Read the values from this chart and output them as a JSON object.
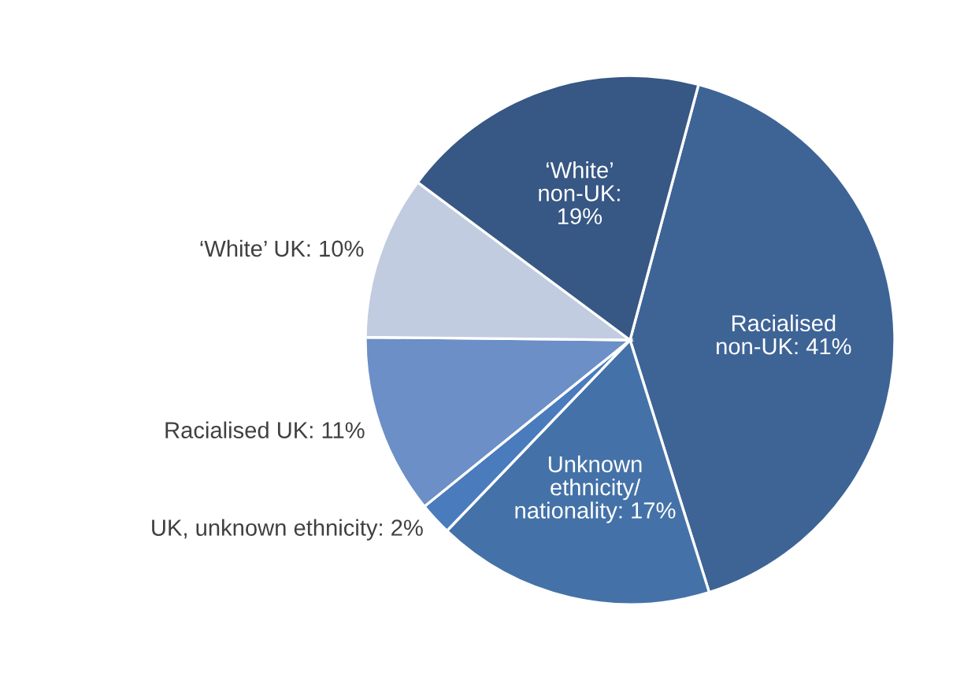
{
  "chart_data": {
    "type": "pie",
    "categories": [
      "Racialised\nnon-UK: 41%",
      "Unknown\nethnicity/\nnationality: 17%",
      "UK, unknown ethnicity: 2%",
      "Racialised UK: 11%",
      "‘White’ UK: 10%",
      "‘White’\nnon-UK:\n19%"
    ],
    "values": [
      41,
      17,
      2,
      11,
      10,
      19
    ],
    "colors": [
      "#3e6496",
      "#4472a8",
      "#4a7bbd",
      "#6b8fc6",
      "#c2cce0",
      "#375784"
    ]
  }
}
